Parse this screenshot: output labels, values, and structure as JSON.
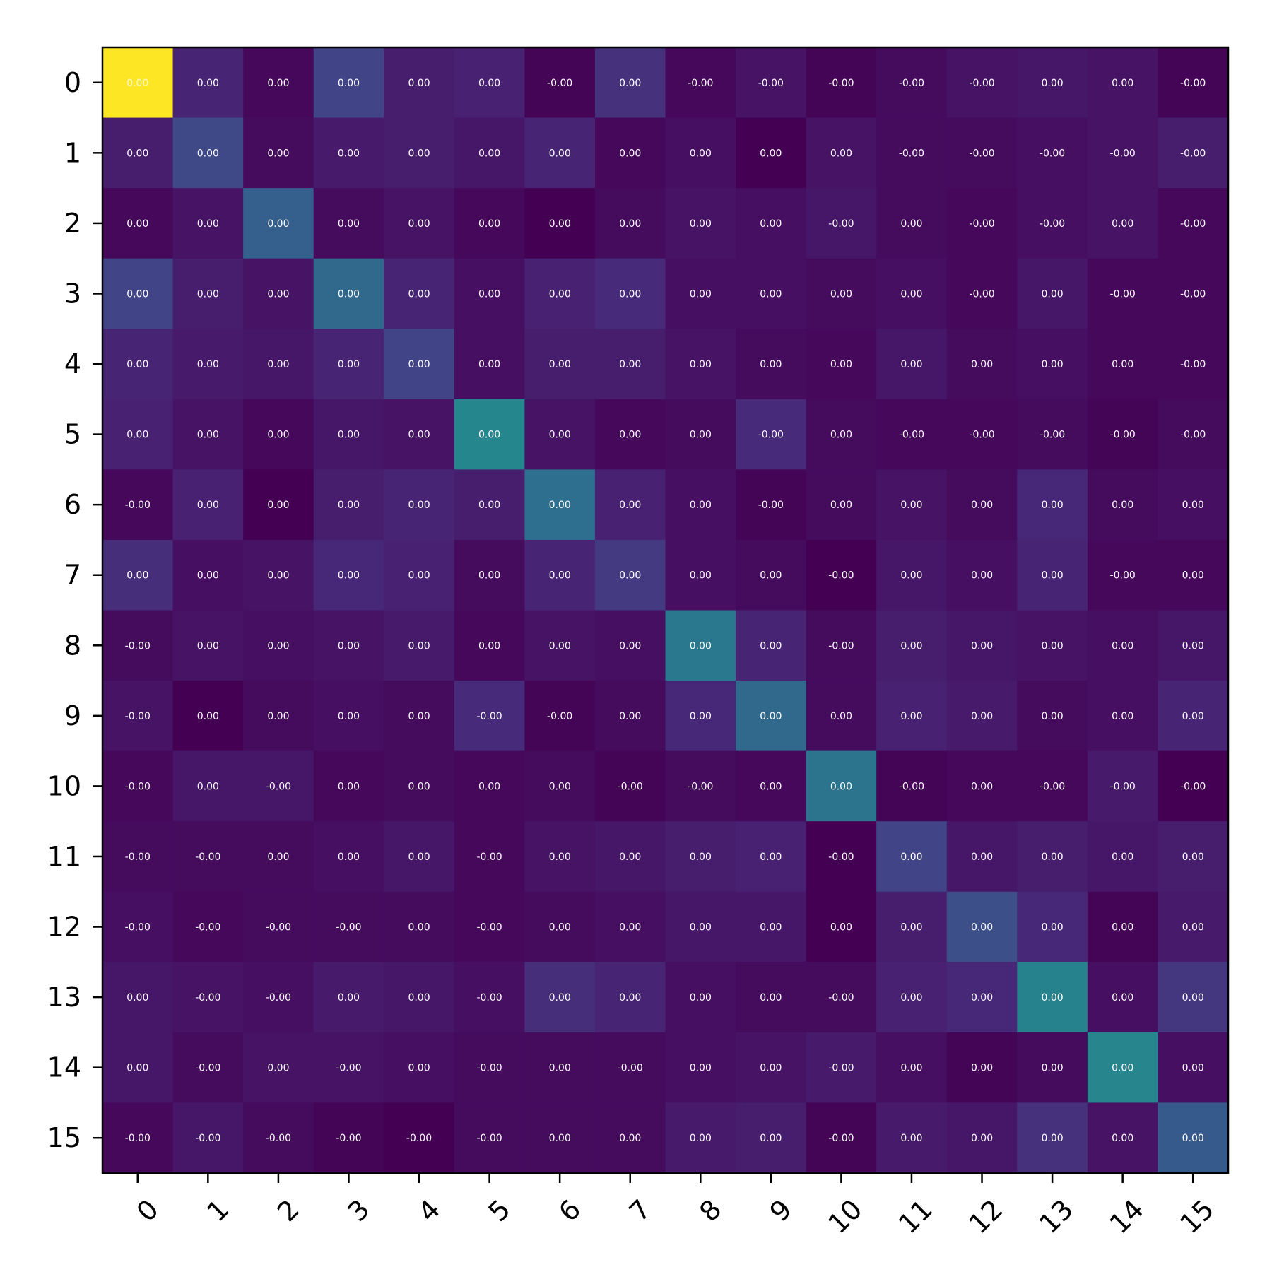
{
  "chart_data": {
    "type": "heatmap",
    "title": "",
    "xlabel": "",
    "ylabel": "",
    "x_ticks": [
      "0",
      "1",
      "2",
      "3",
      "4",
      "5",
      "6",
      "7",
      "8",
      "9",
      "10",
      "11",
      "12",
      "13",
      "14",
      "15"
    ],
    "y_ticks": [
      "0",
      "1",
      "2",
      "3",
      "4",
      "5",
      "6",
      "7",
      "8",
      "9",
      "10",
      "11",
      "12",
      "13",
      "14",
      "15"
    ],
    "colormap": "viridis",
    "value_range": [
      0,
      1
    ],
    "intensity": [
      [
        1.0,
        0.1,
        0.02,
        0.2,
        0.08,
        0.09,
        0.01,
        0.14,
        0.02,
        0.05,
        0.01,
        0.03,
        0.05,
        0.06,
        0.05,
        0.01
      ],
      [
        0.08,
        0.22,
        0.03,
        0.07,
        0.08,
        0.06,
        0.1,
        0.02,
        0.04,
        0.0,
        0.05,
        0.03,
        0.03,
        0.04,
        0.05,
        0.08
      ],
      [
        0.02,
        0.05,
        0.3,
        0.03,
        0.05,
        0.02,
        0.0,
        0.03,
        0.05,
        0.04,
        0.06,
        0.03,
        0.02,
        0.04,
        0.05,
        0.02
      ],
      [
        0.2,
        0.08,
        0.05,
        0.34,
        0.1,
        0.04,
        0.09,
        0.12,
        0.04,
        0.04,
        0.03,
        0.04,
        0.02,
        0.06,
        0.02,
        0.02
      ],
      [
        0.1,
        0.07,
        0.06,
        0.1,
        0.2,
        0.04,
        0.08,
        0.08,
        0.05,
        0.03,
        0.02,
        0.06,
        0.03,
        0.04,
        0.02,
        0.02
      ],
      [
        0.09,
        0.05,
        0.02,
        0.06,
        0.05,
        0.46,
        0.05,
        0.02,
        0.03,
        0.12,
        0.03,
        0.02,
        0.02,
        0.03,
        0.01,
        0.03
      ],
      [
        0.02,
        0.09,
        0.0,
        0.08,
        0.1,
        0.08,
        0.36,
        0.09,
        0.04,
        0.01,
        0.03,
        0.05,
        0.03,
        0.11,
        0.03,
        0.04
      ],
      [
        0.13,
        0.04,
        0.05,
        0.11,
        0.09,
        0.03,
        0.1,
        0.17,
        0.04,
        0.03,
        0.0,
        0.06,
        0.04,
        0.1,
        0.02,
        0.02
      ],
      [
        0.03,
        0.05,
        0.04,
        0.05,
        0.07,
        0.02,
        0.05,
        0.04,
        0.4,
        0.1,
        0.03,
        0.08,
        0.06,
        0.05,
        0.04,
        0.06
      ],
      [
        0.05,
        0.0,
        0.03,
        0.04,
        0.03,
        0.12,
        0.01,
        0.03,
        0.11,
        0.34,
        0.03,
        0.09,
        0.07,
        0.03,
        0.04,
        0.1
      ],
      [
        0.02,
        0.06,
        0.06,
        0.02,
        0.03,
        0.02,
        0.03,
        0.01,
        0.03,
        0.02,
        0.38,
        0.01,
        0.02,
        0.02,
        0.07,
        0.0
      ],
      [
        0.03,
        0.03,
        0.03,
        0.04,
        0.06,
        0.02,
        0.05,
        0.06,
        0.08,
        0.09,
        0.0,
        0.2,
        0.06,
        0.08,
        0.06,
        0.08
      ],
      [
        0.04,
        0.02,
        0.03,
        0.03,
        0.03,
        0.02,
        0.03,
        0.04,
        0.06,
        0.06,
        0.0,
        0.08,
        0.24,
        0.11,
        0.01,
        0.07
      ],
      [
        0.06,
        0.05,
        0.04,
        0.07,
        0.06,
        0.04,
        0.13,
        0.1,
        0.04,
        0.03,
        0.03,
        0.09,
        0.11,
        0.44,
        0.04,
        0.16
      ],
      [
        0.06,
        0.03,
        0.05,
        0.05,
        0.04,
        0.03,
        0.03,
        0.03,
        0.04,
        0.05,
        0.07,
        0.04,
        0.01,
        0.03,
        0.45,
        0.04
      ],
      [
        0.02,
        0.06,
        0.03,
        0.01,
        0.0,
        0.03,
        0.03,
        0.03,
        0.07,
        0.08,
        0.01,
        0.07,
        0.06,
        0.14,
        0.05,
        0.28
      ]
    ],
    "cell_labels": [
      [
        "0.00",
        "0.00",
        "0.00",
        "0.00",
        "0.00",
        "0.00",
        "-0.00",
        "0.00",
        "-0.00",
        "-0.00",
        "-0.00",
        "-0.00",
        "-0.00",
        "0.00",
        "0.00",
        "-0.00"
      ],
      [
        "0.00",
        "0.00",
        "0.00",
        "0.00",
        "0.00",
        "0.00",
        "0.00",
        "0.00",
        "0.00",
        "0.00",
        "0.00",
        "-0.00",
        "-0.00",
        "-0.00",
        "-0.00",
        "-0.00"
      ],
      [
        "0.00",
        "0.00",
        "0.00",
        "0.00",
        "0.00",
        "0.00",
        "0.00",
        "0.00",
        "0.00",
        "0.00",
        "-0.00",
        "0.00",
        "-0.00",
        "-0.00",
        "0.00",
        "-0.00"
      ],
      [
        "0.00",
        "0.00",
        "0.00",
        "0.00",
        "0.00",
        "0.00",
        "0.00",
        "0.00",
        "0.00",
        "0.00",
        "0.00",
        "0.00",
        "-0.00",
        "0.00",
        "-0.00",
        "-0.00"
      ],
      [
        "0.00",
        "0.00",
        "0.00",
        "0.00",
        "0.00",
        "0.00",
        "0.00",
        "0.00",
        "0.00",
        "0.00",
        "0.00",
        "0.00",
        "0.00",
        "0.00",
        "0.00",
        "-0.00"
      ],
      [
        "0.00",
        "0.00",
        "0.00",
        "0.00",
        "0.00",
        "0.00",
        "0.00",
        "0.00",
        "0.00",
        "-0.00",
        "0.00",
        "-0.00",
        "-0.00",
        "-0.00",
        "-0.00",
        "-0.00"
      ],
      [
        "-0.00",
        "0.00",
        "0.00",
        "0.00",
        "0.00",
        "0.00",
        "0.00",
        "0.00",
        "0.00",
        "-0.00",
        "0.00",
        "0.00",
        "0.00",
        "0.00",
        "0.00",
        "0.00"
      ],
      [
        "0.00",
        "0.00",
        "0.00",
        "0.00",
        "0.00",
        "0.00",
        "0.00",
        "0.00",
        "0.00",
        "0.00",
        "-0.00",
        "0.00",
        "0.00",
        "0.00",
        "-0.00",
        "0.00"
      ],
      [
        "-0.00",
        "0.00",
        "0.00",
        "0.00",
        "0.00",
        "0.00",
        "0.00",
        "0.00",
        "0.00",
        "0.00",
        "-0.00",
        "0.00",
        "0.00",
        "0.00",
        "0.00",
        "0.00"
      ],
      [
        "-0.00",
        "0.00",
        "0.00",
        "0.00",
        "0.00",
        "-0.00",
        "-0.00",
        "0.00",
        "0.00",
        "0.00",
        "0.00",
        "0.00",
        "0.00",
        "0.00",
        "0.00",
        "0.00"
      ],
      [
        "-0.00",
        "0.00",
        "-0.00",
        "0.00",
        "0.00",
        "0.00",
        "0.00",
        "-0.00",
        "-0.00",
        "0.00",
        "0.00",
        "-0.00",
        "0.00",
        "-0.00",
        "-0.00",
        "-0.00"
      ],
      [
        "-0.00",
        "-0.00",
        "0.00",
        "0.00",
        "0.00",
        "-0.00",
        "0.00",
        "0.00",
        "0.00",
        "0.00",
        "-0.00",
        "0.00",
        "0.00",
        "0.00",
        "0.00",
        "0.00"
      ],
      [
        "-0.00",
        "-0.00",
        "-0.00",
        "-0.00",
        "0.00",
        "-0.00",
        "0.00",
        "0.00",
        "0.00",
        "0.00",
        "0.00",
        "0.00",
        "0.00",
        "0.00",
        "0.00",
        "0.00"
      ],
      [
        "0.00",
        "-0.00",
        "-0.00",
        "0.00",
        "0.00",
        "-0.00",
        "0.00",
        "0.00",
        "0.00",
        "0.00",
        "-0.00",
        "0.00",
        "0.00",
        "0.00",
        "0.00",
        "0.00"
      ],
      [
        "0.00",
        "-0.00",
        "0.00",
        "-0.00",
        "0.00",
        "-0.00",
        "0.00",
        "-0.00",
        "0.00",
        "0.00",
        "-0.00",
        "0.00",
        "0.00",
        "0.00",
        "0.00",
        "0.00"
      ],
      [
        "-0.00",
        "-0.00",
        "-0.00",
        "-0.00",
        "-0.00",
        "-0.00",
        "0.00",
        "0.00",
        "0.00",
        "0.00",
        "-0.00",
        "0.00",
        "0.00",
        "0.00",
        "0.00",
        "0.00"
      ]
    ],
    "colorbar": false,
    "grid": false
  }
}
